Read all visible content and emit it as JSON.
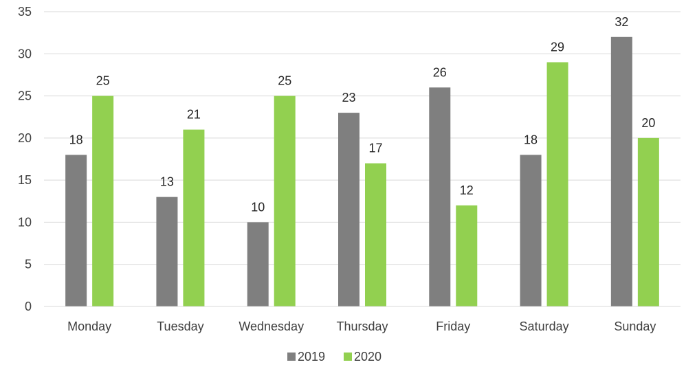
{
  "chart_data": {
    "type": "bar",
    "categories": [
      "Monday",
      "Tuesday",
      "Wednesday",
      "Thursday",
      "Friday",
      "Saturday",
      "Sunday"
    ],
    "series": [
      {
        "name": "2019",
        "color": "#7f7f7f",
        "values": [
          18,
          13,
          10,
          23,
          26,
          18,
          32
        ]
      },
      {
        "name": "2020",
        "color": "#92d050",
        "values": [
          25,
          21,
          25,
          17,
          12,
          29,
          20
        ]
      }
    ],
    "ylim": [
      0,
      35
    ],
    "yticks": [
      0,
      5,
      10,
      15,
      20,
      25,
      30,
      35
    ],
    "grid": true,
    "data_labels": true,
    "legend_position": "bottom"
  }
}
